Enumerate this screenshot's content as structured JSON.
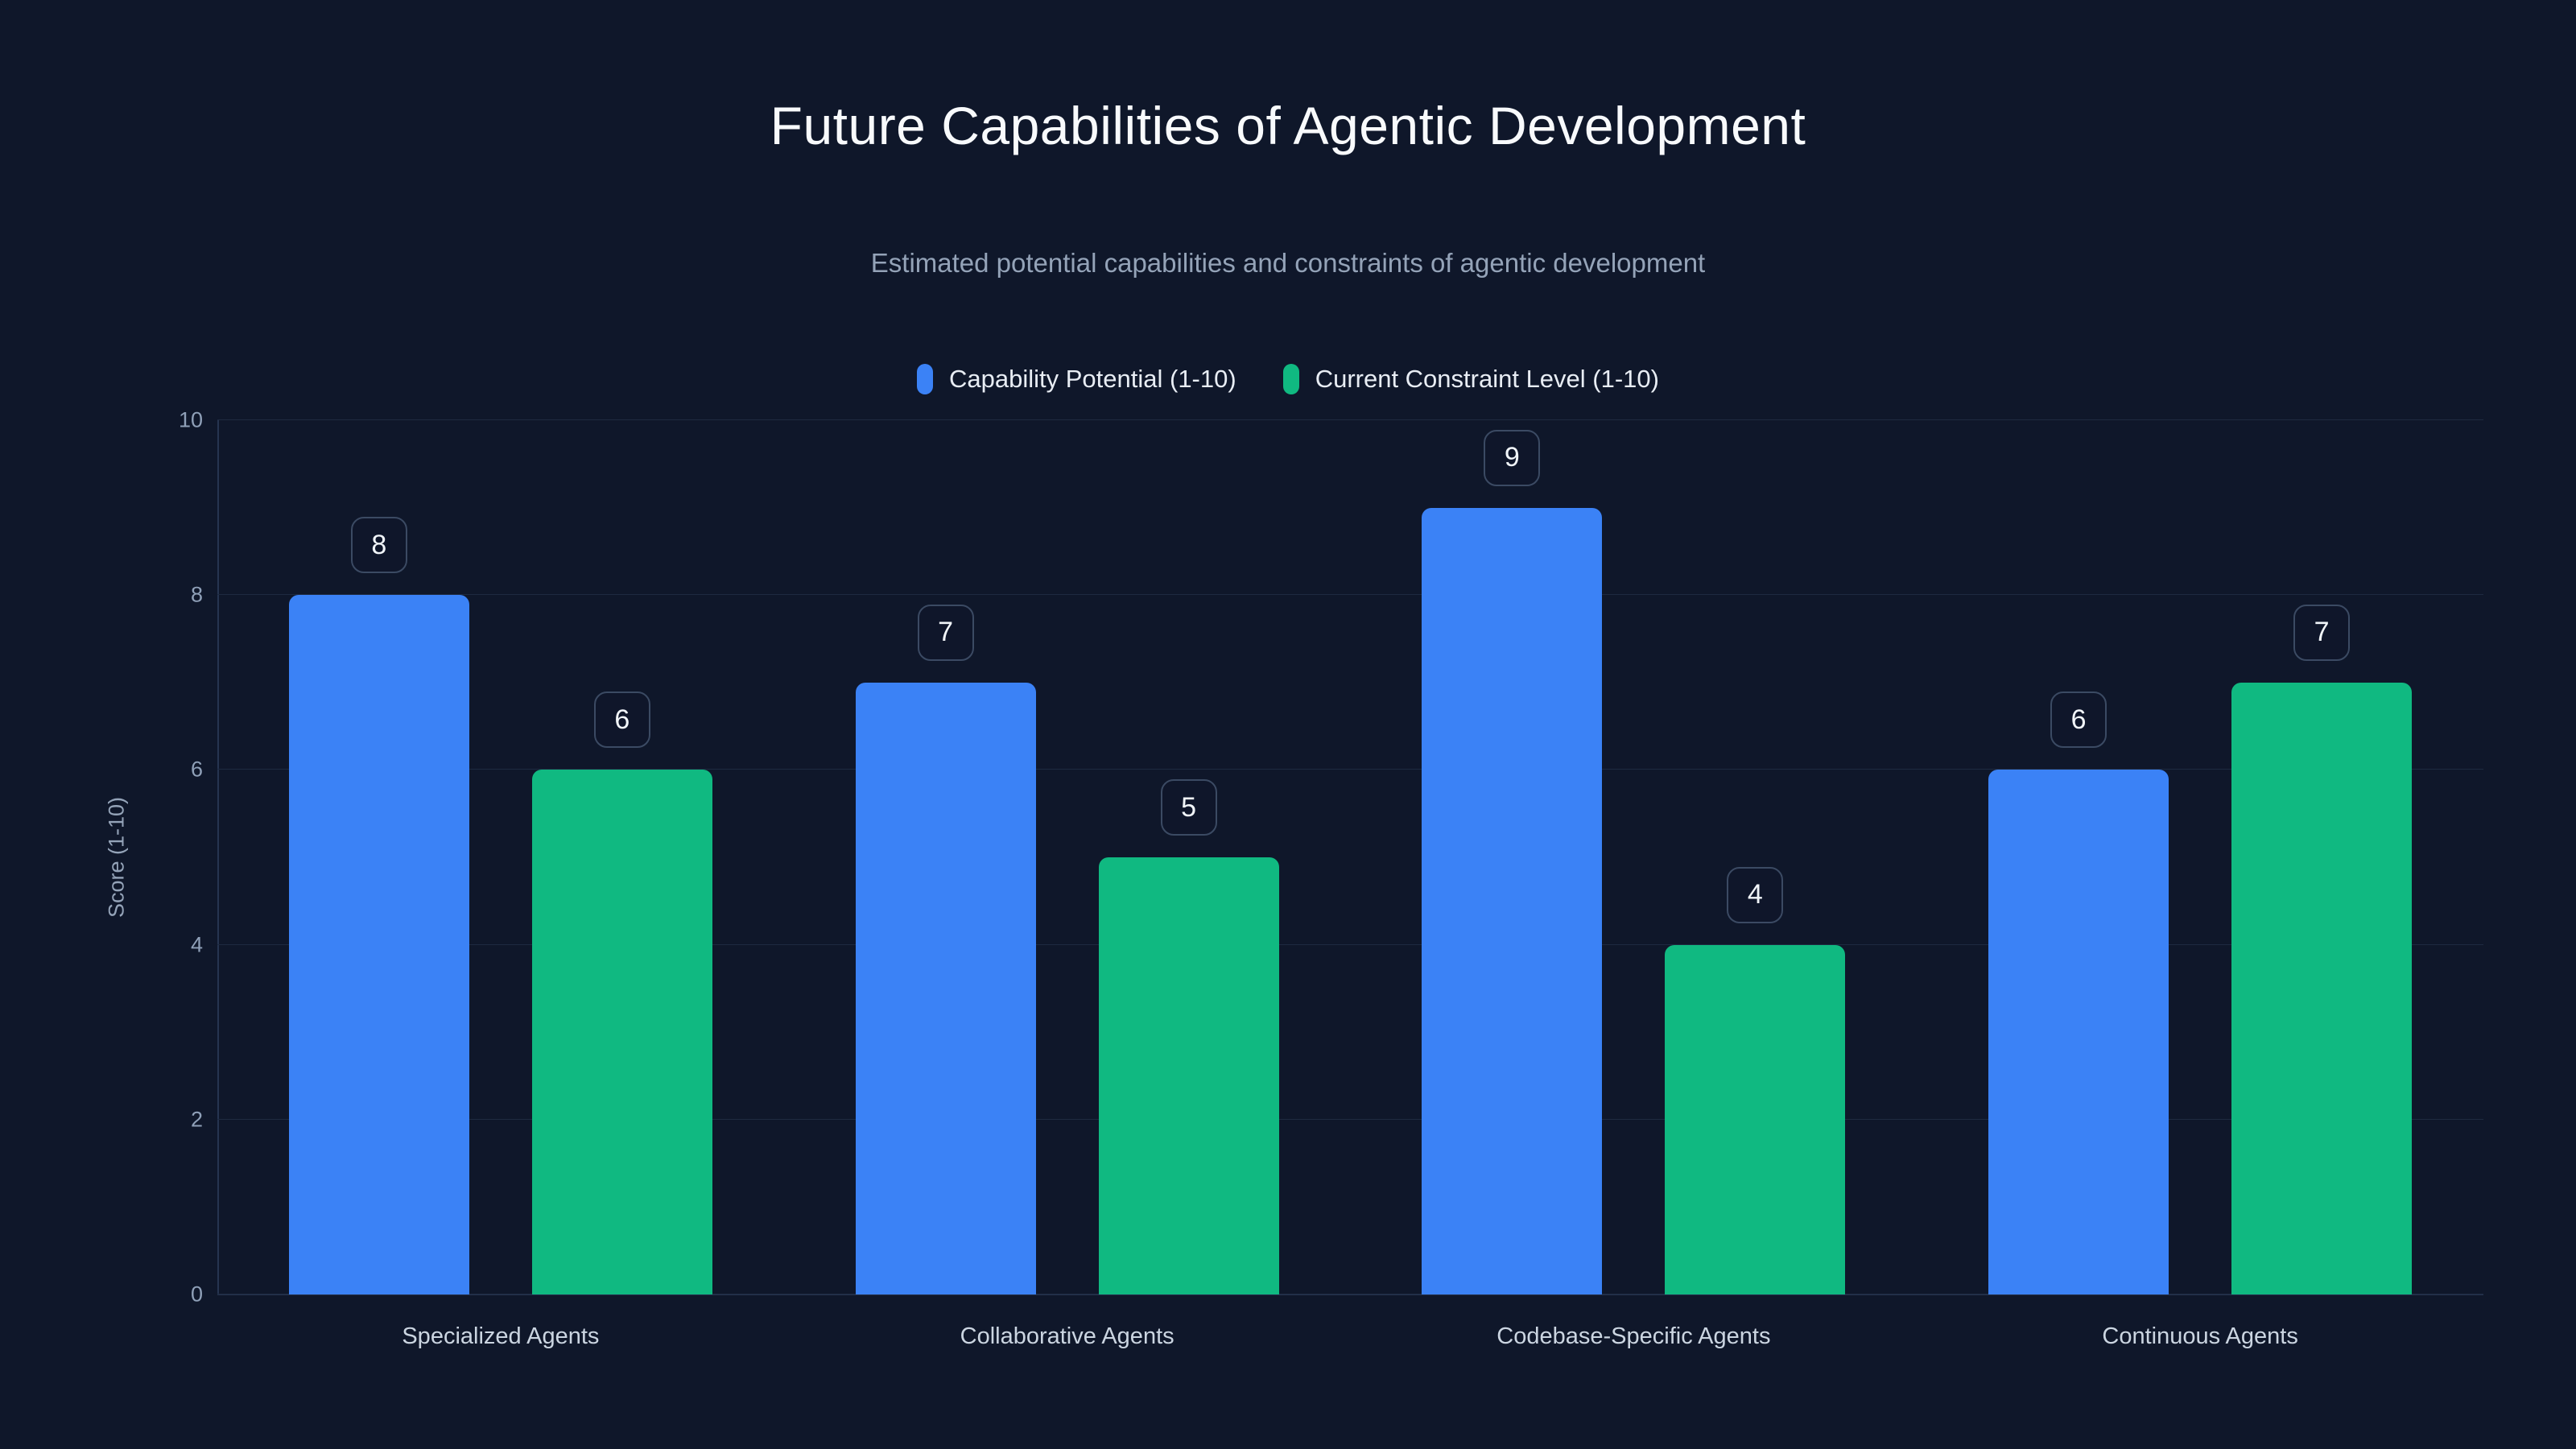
{
  "colors": {
    "background": "#0f172a",
    "capability_blue": "#3b82f6",
    "constraint_green": "#10b981"
  },
  "chart_data": {
    "type": "bar",
    "title": "Future Capabilities of Agentic Development",
    "subtitle": "Estimated potential capabilities and constraints of agentic development",
    "categories": [
      "Specialized Agents",
      "Collaborative Agents",
      "Codebase-Specific Agents",
      "Continuous Agents"
    ],
    "series": [
      {
        "name": "Capability Potential (1-10)",
        "color": "#3b82f6",
        "values": [
          8,
          7,
          9,
          6
        ]
      },
      {
        "name": "Current Constraint Level (1-10)",
        "color": "#10b981",
        "values": [
          6,
          5,
          4,
          7
        ]
      }
    ],
    "xlabel": "",
    "ylabel": "Score (1-10)",
    "ylim": [
      0,
      10
    ],
    "yticks": [
      0,
      2,
      4,
      6,
      8,
      10
    ],
    "grid": true,
    "legend_position": "top",
    "value_labels": true
  }
}
